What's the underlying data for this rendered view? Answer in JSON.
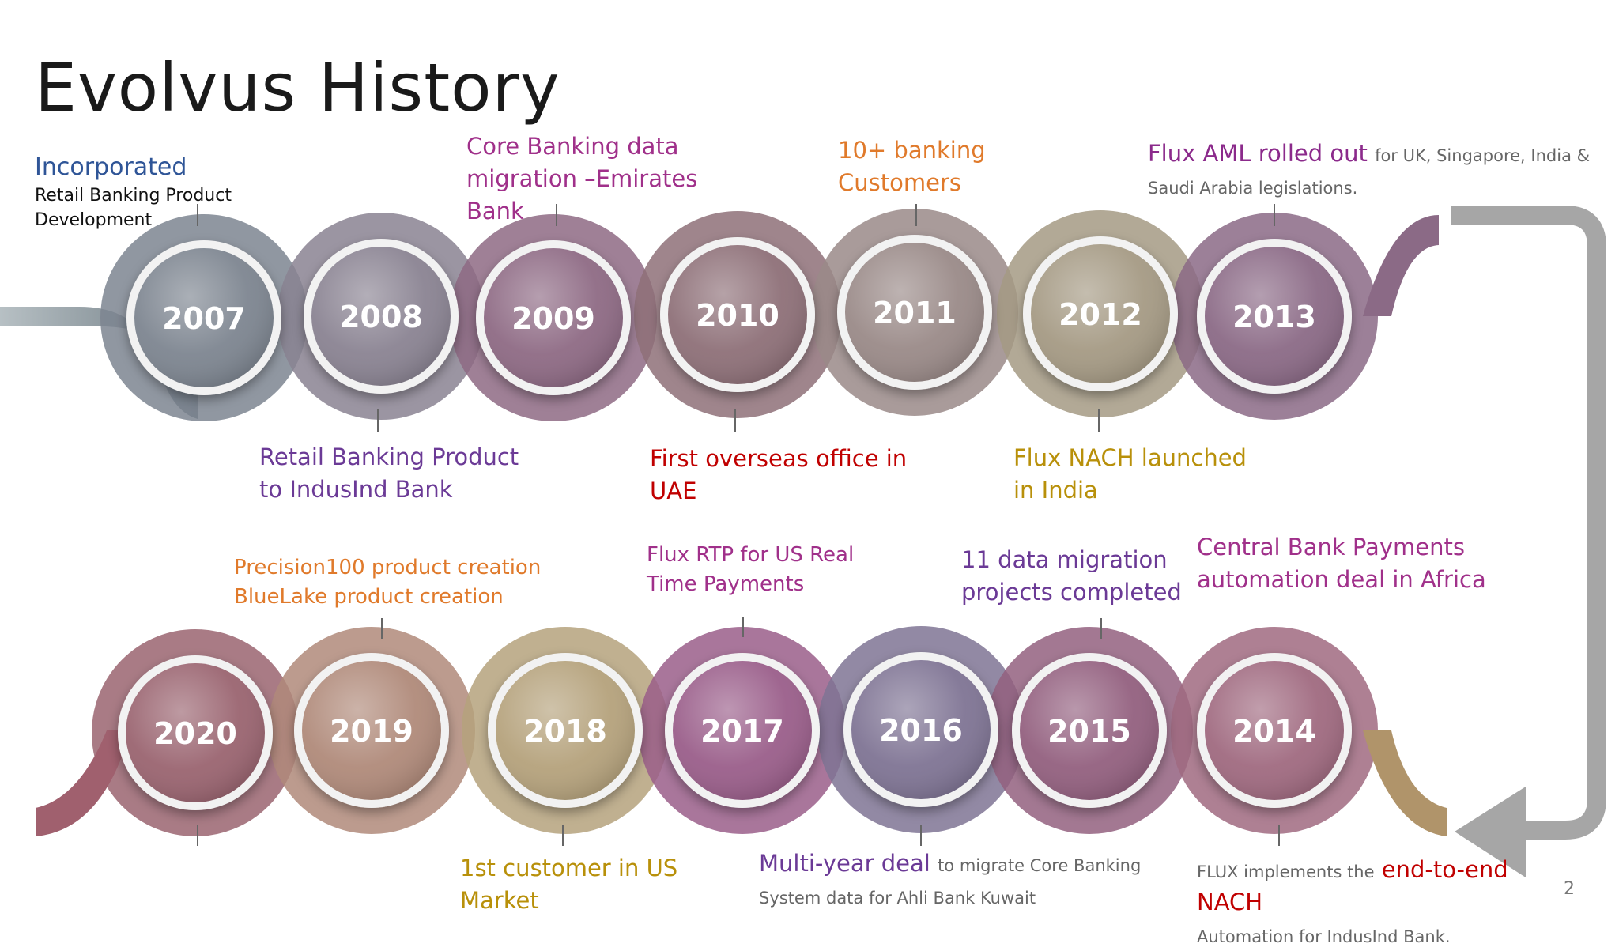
{
  "slide": {
    "title": "Evolvus History",
    "page_number": "2"
  },
  "milestones": [
    {
      "year": "2007",
      "head": "Incorporated",
      "head_color": "#2f5597",
      "body": "Retail Banking Product Development",
      "body_color": "#111111",
      "circle": "#7d8590"
    },
    {
      "year": "2008",
      "head": "Retail Banking Product to IndusInd Bank",
      "head_color": "#6b3a96",
      "circle": "#8a8392"
    },
    {
      "year": "2009",
      "head": "Core Banking data migration –Emirates Bank",
      "head_color": "#a0308a",
      "circle": "#8e6a84"
    },
    {
      "year": "2010",
      "head": "First overseas office in UAE",
      "head_color": "#c00000",
      "circle": "#8e7078"
    },
    {
      "year": "2011",
      "head": "10+ banking Customers",
      "head_color": "#e07a2b",
      "circle": "#9a8a88"
    },
    {
      "year": "2012",
      "head": "Flux NACH launched in India",
      "head_color": "#b8900a",
      "circle": "#a59a84"
    },
    {
      "year": "2013",
      "head": "Flux AML rolled out",
      "head_color": "#8b2a8b",
      "body": "for UK, Singapore, India & Saudi Arabia legislations.",
      "body_color": "#666666",
      "circle": "#8b6a86"
    },
    {
      "year": "2014",
      "head": "end-to-end NACH",
      "head_prefix": "FLUX implements the",
      "head_color": "#c00000",
      "body": "Automation for IndusInd Bank.",
      "body_color": "#666666",
      "circle": "#a06a80"
    },
    {
      "year": "2015",
      "head": "11 data migration projects completed",
      "head_color": "#6b3a96",
      "circle": "#93607f"
    },
    {
      "year": "2016",
      "head": "Multi-year deal",
      "head_color": "#6b3a96",
      "body": "to migrate Core Banking System data for Ahli Bank Kuwait",
      "body_color": "#666666",
      "circle": "#7f7494"
    },
    {
      "year": "2017",
      "head": "Flux RTP for US Real Time Payments",
      "head_color": "#a0308a",
      "circle": "#9a5e8a"
    },
    {
      "year": "2018",
      "head": "1st customer in US Market",
      "head_color": "#b8900a",
      "circle": "#b5a27c"
    },
    {
      "year": "2019",
      "head": "Precision100 product creation",
      "head2": "BlueLake product creation",
      "head_color": "#e07a2b",
      "circle": "#b08a7a"
    },
    {
      "year": "2020",
      "head": "",
      "head_color": "#000000",
      "circle": "#9a6470"
    }
  ],
  "colors": {
    "track_start": "#8a959d",
    "track_mid": "#8a6e86",
    "connector_arrow": "#a6a6a6"
  }
}
